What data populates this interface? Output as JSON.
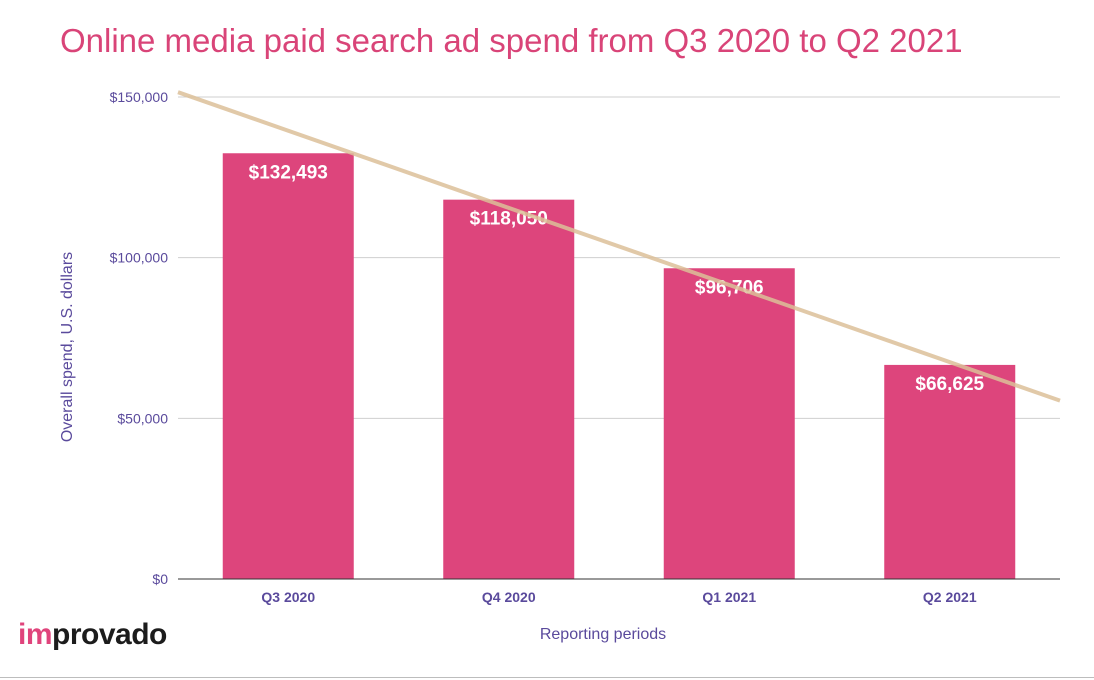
{
  "chart_data": {
    "type": "bar",
    "title": "Online media paid search ad spend from Q3 2020 to Q2 2021",
    "xlabel": "Reporting periods",
    "ylabel": "Overall spend, U.S. dollars",
    "categories": [
      "Q3 2020",
      "Q4 2020",
      "Q1 2021",
      "Q2 2021"
    ],
    "values": [
      132493,
      118050,
      96706,
      66625
    ],
    "data_labels": [
      "$132,493",
      "$118,050",
      "$96,706",
      "$66,625"
    ],
    "ylim": [
      0,
      150000
    ],
    "yticks": [
      0,
      50000,
      100000,
      150000
    ],
    "ytick_labels": [
      "$0",
      "$50,000",
      "$100,000",
      "$150,000"
    ],
    "grid": true,
    "trendline": {
      "start_value": 151500,
      "end_value": 55500
    },
    "colors": {
      "bar": "#dd457c",
      "trendline": "#dcbf99",
      "axis_text": "#5a4a9c",
      "title": "#d94478"
    }
  },
  "branding": {
    "logo_prefix": "im",
    "logo_rest": "provado"
  }
}
